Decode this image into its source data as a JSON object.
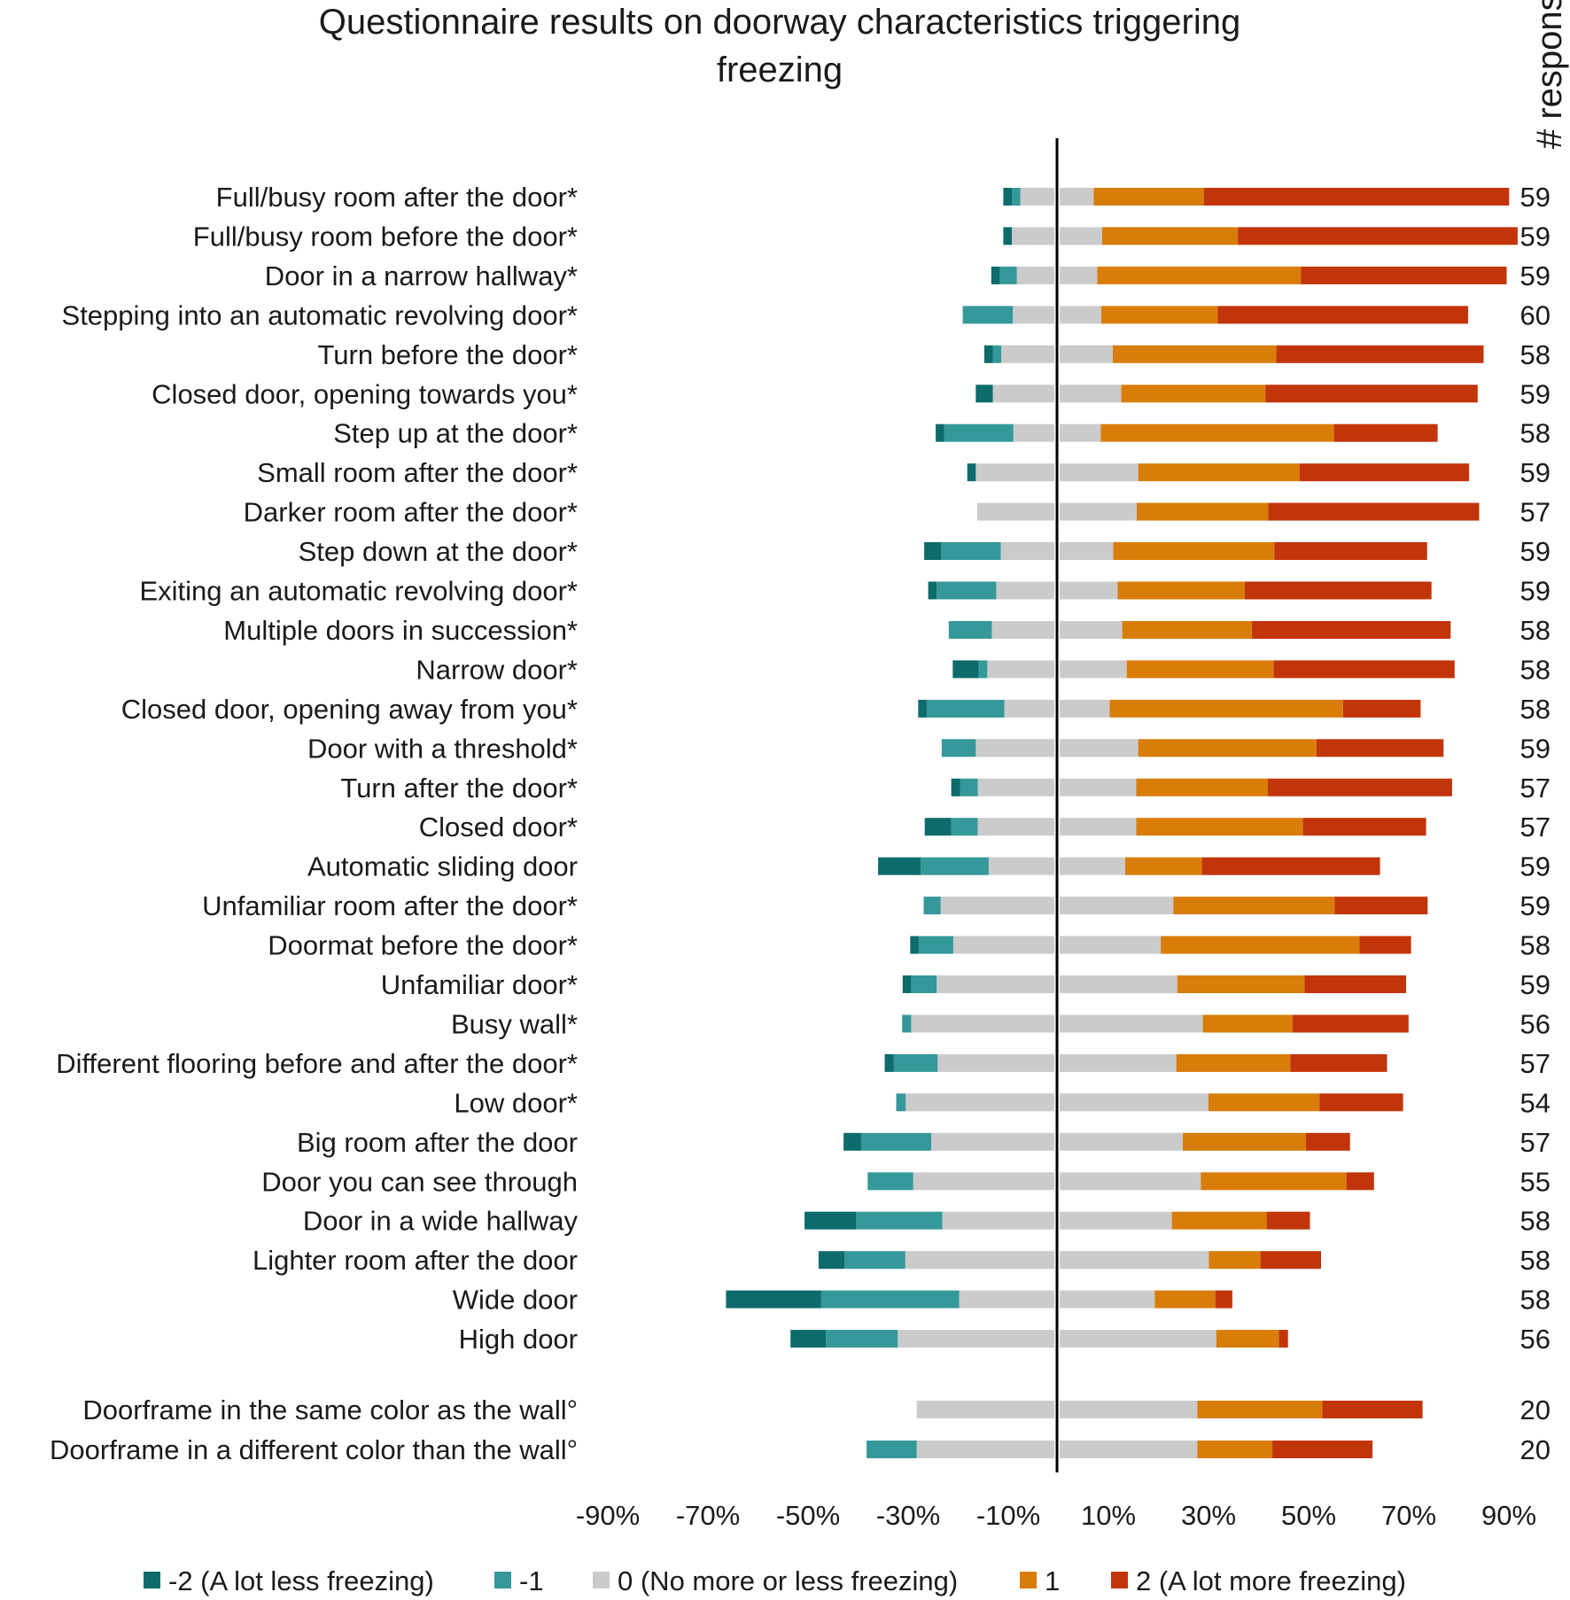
{
  "chart_data": {
    "type": "bar",
    "orientation": "horizontal",
    "stacked": "diverging",
    "title_lines": [
      "Questionnaire results on doorway characteristics triggering",
      "freezing"
    ],
    "responses_header": "# responses",
    "xlim": [
      -90,
      90
    ],
    "x_ticks": [
      "-90%",
      "-70%",
      "-50%",
      "-30%",
      "-10%",
      "10%",
      "30%",
      "50%",
      "70%",
      "90%"
    ],
    "series": [
      {
        "name": "-2 (A lot less freezing)",
        "color": "#0d6b6b"
      },
      {
        "name": "-1",
        "color": "#35989b"
      },
      {
        "name": "0 (No more or less freezing)",
        "color": "#cbcbcb"
      },
      {
        "name": "1",
        "color": "#d97d0a"
      },
      {
        "name": "2 (A lot more freezing)",
        "color": "#c2340a"
      }
    ],
    "rows": [
      {
        "label": "Full/busy room after the door*",
        "responses": "59",
        "values": [
          -1.7,
          -1.7,
          -6.8,
          6.8,
          61.0
        ]
      },
      {
        "label": "Full/busy room before the door*",
        "responses": "59",
        "values": [
          -1.7,
          0,
          -8.5,
          8.5,
          55.9
        ]
      },
      {
        "label": "Door in a narrow hallway*",
        "responses": "59",
        "values": [
          -1.7,
          -3.4,
          -7.5,
          7.5,
          41.1
        ]
      },
      {
        "label": "Stepping into an automatic revolving door*",
        "responses": "60",
        "values": [
          0,
          -10.0,
          -8.3,
          8.3,
          50.0
        ]
      },
      {
        "label": "Turn before the door*",
        "responses": "58",
        "values": [
          -1.7,
          -1.7,
          -10.6,
          10.6,
          41.4
        ]
      },
      {
        "label": "Closed door, opening towards you*",
        "responses": "59",
        "values": [
          -3.4,
          0,
          -12.3,
          12.3,
          42.4
        ]
      },
      {
        "label": "Step up at the door*",
        "responses": "58",
        "values": [
          -1.7,
          -13.8,
          -8.2,
          8.2,
          20.7
        ]
      },
      {
        "label": "Small room after the door*",
        "responses": "59",
        "values": [
          -1.7,
          0,
          -15.7,
          15.7,
          33.9
        ]
      },
      {
        "label": "Darker room after the door*",
        "responses": "57",
        "values": [
          0,
          0,
          -15.4,
          15.4,
          42.1
        ]
      },
      {
        "label": "Step down at the door*",
        "responses": "59",
        "values": [
          -3.4,
          -11.9,
          -10.7,
          10.7,
          30.5
        ]
      },
      {
        "label": "Exiting an automatic revolving door*",
        "responses": "59",
        "values": [
          -1.7,
          -11.9,
          -11.6,
          11.6,
          37.3
        ]
      },
      {
        "label": "Multiple doors in succession*",
        "responses": "58",
        "values": [
          0,
          -8.6,
          -12.5,
          12.5,
          39.7
        ]
      },
      {
        "label": "Narrow door*",
        "responses": "58",
        "values": [
          -5.2,
          -1.7,
          -13.4,
          13.4,
          36.2
        ]
      },
      {
        "label": "Closed door, opening away from you*",
        "responses": "58",
        "values": [
          -1.7,
          -15.5,
          -10.0,
          10.0,
          15.5
        ]
      },
      {
        "label": "Door with a threshold*",
        "responses": "59",
        "values": [
          0,
          -6.8,
          -15.7,
          15.7,
          25.4
        ]
      },
      {
        "label": "Turn after the door*",
        "responses": "57",
        "values": [
          -1.8,
          -3.5,
          -15.3,
          15.3,
          36.8
        ]
      },
      {
        "label": "Closed door*",
        "responses": "57",
        "values": [
          -5.3,
          -5.3,
          -15.3,
          15.3,
          24.6
        ]
      },
      {
        "label": "Automatic sliding door",
        "responses": "59",
        "values": [
          -8.5,
          -13.6,
          -13.1,
          13.1,
          35.6
        ]
      },
      {
        "label": "Unfamiliar room after the door*",
        "responses": "59",
        "values": [
          0,
          -3.4,
          -22.7,
          22.7,
          18.6
        ]
      },
      {
        "label": "Doormat before the door*",
        "responses": "58",
        "values": [
          -1.7,
          -6.9,
          -20.2,
          20.2,
          10.3
        ]
      },
      {
        "label": "Unfamiliar door*",
        "responses": "59",
        "values": [
          -1.7,
          -5.1,
          -23.5,
          23.5,
          20.3
        ]
      },
      {
        "label": "Busy wall*",
        "responses": "56",
        "values": [
          0,
          -1.8,
          -28.6,
          28.6,
          23.2
        ]
      },
      {
        "label": "Different flooring before and after the door*",
        "responses": "57",
        "values": [
          -1.8,
          -8.8,
          -23.3,
          23.3,
          19.3
        ]
      },
      {
        "label": "Low door*",
        "responses": "54",
        "values": [
          0,
          -1.9,
          -29.7,
          29.7,
          16.7
        ]
      },
      {
        "label": "Big room after the door",
        "responses": "57",
        "values": [
          -3.5,
          -14.0,
          -24.6,
          24.6,
          8.8
        ]
      },
      {
        "label": "Door you can see through",
        "responses": "55",
        "values": [
          0,
          -9.1,
          -28.2,
          28.2,
          5.5
        ]
      },
      {
        "label": "Door in a wide hallway",
        "responses": "58",
        "values": [
          -10.3,
          -17.2,
          -22.4,
          22.4,
          8.6
        ]
      },
      {
        "label": "Lighter room after the door",
        "responses": "58",
        "values": [
          -5.2,
          -12.1,
          -29.8,
          29.8,
          12.1
        ]
      },
      {
        "label": "Wide door",
        "responses": "58",
        "values": [
          -19.0,
          -27.6,
          -19.0,
          19.0,
          3.4
        ]
      },
      {
        "label": "High door",
        "responses": "56",
        "values": [
          -7.1,
          -14.3,
          -31.3,
          31.3,
          1.8
        ]
      },
      {
        "label": "Doorframe in the same color as the wall°",
        "responses": "20",
        "values": [
          0,
          0,
          -27.5,
          27.5,
          20.0
        ]
      },
      {
        "label": "Doorframe in a different color than the wall°",
        "responses": "20",
        "values": [
          0,
          -10.0,
          -27.5,
          27.5,
          20.0
        ]
      }
    ],
    "positive_1_values": [
      22.0,
      27.1,
      40.7,
      23.3,
      32.7,
      28.8,
      46.6,
      32.2,
      26.3,
      32.2,
      25.4,
      25.9,
      29.3,
      46.6,
      35.6,
      26.3,
      33.3,
      15.3,
      32.2,
      39.7,
      25.4,
      17.9,
      22.8,
      22.2,
      24.6,
      29.1,
      19.0,
      10.3,
      12.1,
      12.5,
      25.0,
      15.0
    ]
  }
}
